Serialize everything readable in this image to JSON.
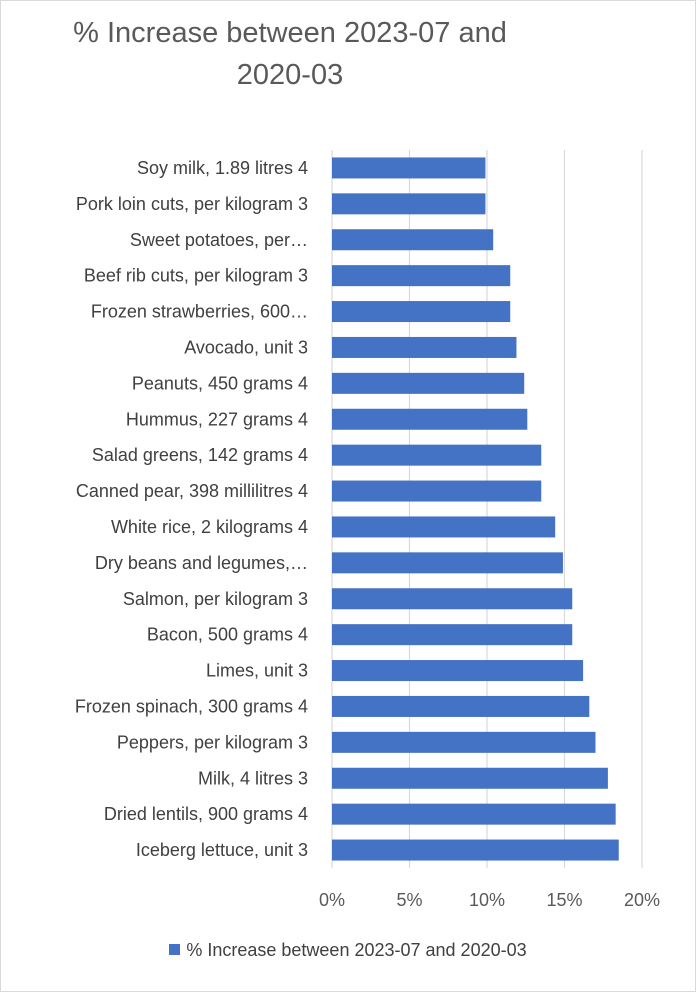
{
  "chart_data": {
    "type": "bar",
    "orientation": "horizontal",
    "title": "% Increase between 2023-07 and 2020-03",
    "categories": [
      "Soy milk, 1.89 litres 4",
      "Pork loin cuts, per kilogram 3",
      "Sweet potatoes, per…",
      "Beef rib cuts, per kilogram 3",
      "Frozen strawberries, 600…",
      "Avocado, unit 3",
      "Peanuts, 450 grams 4",
      "Hummus, 227 grams 4",
      "Salad greens, 142 grams 4",
      "Canned pear, 398 millilitres 4",
      "White rice, 2 kilograms 4",
      "Dry beans and legumes,…",
      "Salmon, per kilogram 3",
      "Bacon, 500 grams 4",
      "Limes, unit 3",
      "Frozen spinach, 300 grams 4",
      "Peppers, per kilogram 3",
      "Milk, 4 litres 3",
      "Dried lentils, 900 grams 4",
      "Iceberg lettuce, unit 3"
    ],
    "series": [
      {
        "name": "% Increase between 2023-07 and 2020-03",
        "color": "#4472C4",
        "values": [
          9.9,
          9.9,
          10.4,
          11.5,
          11.5,
          11.9,
          12.4,
          12.6,
          13.5,
          13.5,
          14.4,
          14.9,
          15.5,
          15.5,
          16.2,
          16.6,
          17.0,
          17.8,
          18.3,
          18.5
        ]
      }
    ],
    "xlim": [
      0,
      20
    ],
    "xticks": [
      "0%",
      "5%",
      "10%",
      "15%",
      "20%"
    ],
    "xlabel": "",
    "ylabel": "",
    "grid": true,
    "legend": "bottom"
  }
}
